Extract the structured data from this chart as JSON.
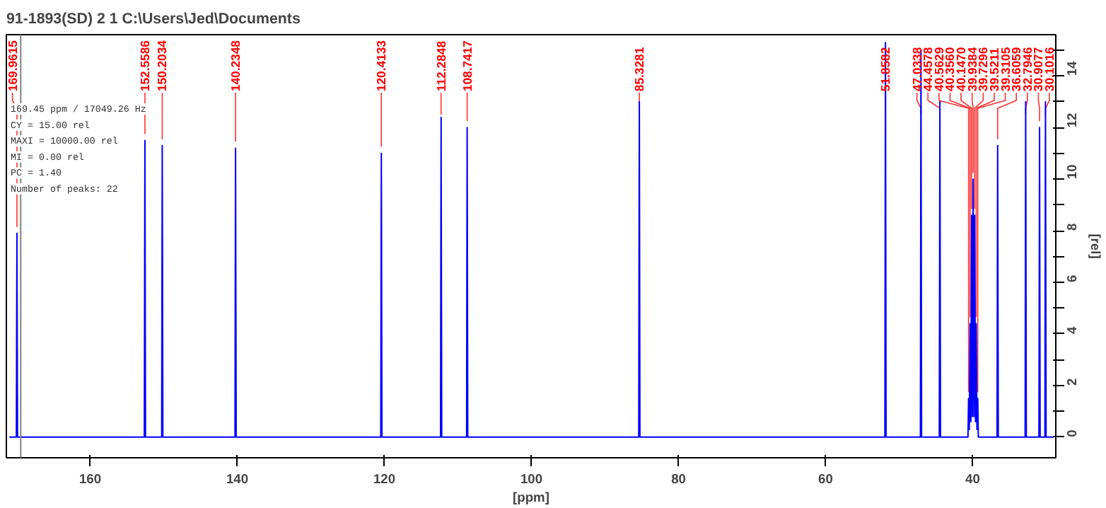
{
  "chart_data": {
    "type": "line",
    "title": "91-1893(SD)  2  1  C:\\Users\\Jed\\Documents",
    "xlabel": "[ppm]",
    "ylabel": "[rel]",
    "xlim": [
      171.4,
      28.7
    ],
    "xticks": [
      160,
      140,
      120,
      100,
      80,
      60,
      40
    ],
    "ylim": [
      -0.8,
      15.6
    ],
    "yticks": [
      0,
      {
        "value": 1,
        "label": null
      },
      2,
      {
        "value": 3,
        "label": null
      },
      4,
      {
        "value": 5,
        "label": null
      },
      6,
      {
        "value": 7,
        "label": null
      },
      8,
      {
        "value": 9,
        "label": null
      },
      10,
      {
        "value": 11,
        "label": null
      },
      12,
      {
        "value": 13,
        "label": null
      },
      14,
      {
        "value": 15,
        "label": null
      }
    ],
    "grid": false,
    "marker": "none",
    "line_style": "solid",
    "series": [
      {
        "color": "#0000ff",
        "x": [
          171.0,
          170.04,
          169.9615,
          169.88,
          152.64,
          152.5586,
          152.48,
          150.28,
          150.2034,
          150.12,
          140.31,
          140.2348,
          140.15,
          120.49,
          120.4133,
          120.33,
          112.36,
          112.2848,
          112.2,
          108.82,
          108.7417,
          108.66,
          85.41,
          85.3281,
          85.25,
          51.94,
          51.8582,
          51.78,
          47.11,
          47.0338,
          46.95,
          44.54,
          44.4578,
          44.38,
          40.64,
          40.5629,
          40.46,
          40.356,
          40.25,
          40.147,
          40.04,
          39.9384,
          39.83,
          39.7296,
          39.62,
          39.5211,
          39.42,
          39.3105,
          39.23,
          36.69,
          36.6059,
          36.52,
          32.87,
          32.7946,
          32.71,
          30.99,
          30.9077,
          30.83,
          30.18,
          30.1016,
          30.02,
          29.0
        ],
        "values": [
          0,
          0,
          7.9,
          0,
          0,
          11.5,
          0,
          0,
          11.3,
          0,
          0,
          11.2,
          0,
          0,
          11.0,
          0,
          0,
          12.4,
          0,
          0,
          12.0,
          0,
          0,
          13.0,
          0,
          0,
          15.3,
          0,
          0,
          15.0,
          0,
          0,
          13.0,
          0,
          0,
          1.5,
          0.3,
          4.4,
          0.6,
          8.6,
          0.8,
          10.0,
          0.8,
          8.6,
          0.6,
          4.4,
          0.3,
          1.5,
          0,
          0,
          11.3,
          0,
          0,
          13.0,
          0,
          0,
          12.0,
          0,
          0,
          13.0,
          0,
          0
        ]
      }
    ],
    "ref_lines": [
      {
        "axis": "x",
        "value": 169.45,
        "color": "#808080"
      }
    ],
    "annotations": [
      "169.45 ppm / 17049.26 Hz",
      "CY = 15.00 rel",
      "MAXI = 10000.00 rel",
      "MI = 0.00 rel",
      "PC = 1.40",
      "Number of peaks: 22",
      {
        "text": "169.9615",
        "x": 169.9615,
        "y": 7.9
      },
      {
        "text": "152.5586",
        "x": 152.5586,
        "y": 11.5
      },
      {
        "text": "150.2034",
        "x": 150.2034,
        "y": 11.3
      },
      {
        "text": "140.2348",
        "x": 140.2348,
        "y": 11.2
      },
      {
        "text": "120.4133",
        "x": 120.4133,
        "y": 11.0
      },
      {
        "text": "112.2848",
        "x": 112.2848,
        "y": 12.4
      },
      {
        "text": "108.7417",
        "x": 108.7417,
        "y": 12.0
      },
      {
        "text": "85.3281",
        "x": 85.3281,
        "y": 13.0
      },
      {
        "text": "51.8582",
        "x": 51.8582,
        "y": 15.3
      },
      {
        "text": "47.0338",
        "x": 47.0338,
        "y": 15.0
      },
      {
        "text": "44.4578",
        "x": 44.4578,
        "y": 13.0
      },
      {
        "text": "40.5629",
        "x": 40.5629,
        "y": 1.5
      },
      {
        "text": "40.3560",
        "x": 40.356,
        "y": 4.4
      },
      {
        "text": "40.1470",
        "x": 40.147,
        "y": 8.6
      },
      {
        "text": "39.9384",
        "x": 39.9384,
        "y": 10.0
      },
      {
        "text": "39.7296",
        "x": 39.7296,
        "y": 8.6
      },
      {
        "text": "39.5211",
        "x": 39.5211,
        "y": 4.4
      },
      {
        "text": "39.3105",
        "x": 39.3105,
        "y": 1.5
      },
      {
        "text": "36.6059",
        "x": 36.6059,
        "y": 11.3
      },
      {
        "text": "32.7946",
        "x": 32.7946,
        "y": 13.0
      },
      {
        "text": "30.9077",
        "x": 30.9077,
        "y": 12.0
      },
      {
        "text": "30.1016",
        "x": 30.1016,
        "y": 13.0
      }
    ]
  }
}
